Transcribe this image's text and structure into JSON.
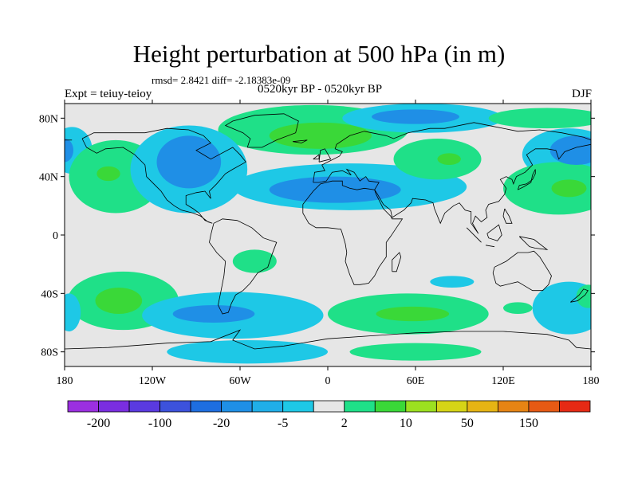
{
  "chart_data": {
    "type": "heatmap",
    "title": "Height perturbation at 500 hPa (in m)",
    "stats_line": "rmsd= 2.8421 diff= -2.18383e-09",
    "period": "0520kyr BP - 0520kyr BP",
    "experiment": "Expt = teiuy-teioy",
    "season": "DJF",
    "projection": "cylindrical equidistant",
    "x_range": [
      -180,
      180
    ],
    "y_range": [
      -90,
      90
    ],
    "x_ticks": [
      {
        "value": -180,
        "label": "180"
      },
      {
        "value": -120,
        "label": "120W"
      },
      {
        "value": -60,
        "label": "60W"
      },
      {
        "value": 0,
        "label": "0"
      },
      {
        "value": 60,
        "label": "60E"
      },
      {
        "value": 120,
        "label": "120E"
      },
      {
        "value": 180,
        "label": "180"
      }
    ],
    "y_ticks": [
      {
        "value": 80,
        "label": "80N"
      },
      {
        "value": 40,
        "label": "40N"
      },
      {
        "value": 0,
        "label": "0"
      },
      {
        "value": -40,
        "label": "40S"
      },
      {
        "value": -80,
        "label": "80S"
      }
    ],
    "colorbar": {
      "colors": [
        "#9b2fe0",
        "#7a2ee0",
        "#5a3ae0",
        "#3c52dc",
        "#1e6ee0",
        "#1f8fe6",
        "#20aee8",
        "#1ec8e6",
        "#e6e6e6",
        "#1fe088",
        "#3ad838",
        "#9ce020",
        "#d6d416",
        "#e6b414",
        "#e68414",
        "#e65a14",
        "#e62a14"
      ],
      "labels": [
        {
          "index": 1,
          "label": "-200"
        },
        {
          "index": 3,
          "label": "-100"
        },
        {
          "index": 5,
          "label": "-20"
        },
        {
          "index": 7,
          "label": "-5"
        },
        {
          "index": 9,
          "label": "2"
        },
        {
          "index": 11,
          "label": "10"
        },
        {
          "index": 13,
          "label": "50"
        },
        {
          "index": 15,
          "label": "150"
        }
      ]
    },
    "anomalies": [
      {
        "lon": -10,
        "lat": 72,
        "rx": 65,
        "ry": 17,
        "level": 1
      },
      {
        "lon": -5,
        "lat": 68,
        "rx": 35,
        "ry": 9,
        "level": 2
      },
      {
        "lon": 65,
        "lat": 80,
        "rx": 55,
        "ry": 10,
        "level": -1
      },
      {
        "lon": 60,
        "lat": 81,
        "rx": 30,
        "ry": 5,
        "level": -2
      },
      {
        "lon": 150,
        "lat": 80,
        "rx": 40,
        "ry": 7,
        "level": 1
      },
      {
        "lon": -175,
        "lat": 58,
        "rx": 14,
        "ry": 16,
        "level": -1
      },
      {
        "lon": -180,
        "lat": 58,
        "rx": 6,
        "ry": 8,
        "level": -2
      },
      {
        "lon": -145,
        "lat": 40,
        "rx": 32,
        "ry": 25,
        "level": 1
      },
      {
        "lon": -150,
        "lat": 42,
        "rx": 8,
        "ry": 5,
        "level": 2
      },
      {
        "lon": -95,
        "lat": 45,
        "rx": 40,
        "ry": 30,
        "level": -1
      },
      {
        "lon": -95,
        "lat": 50,
        "rx": 22,
        "ry": 18,
        "level": -2
      },
      {
        "lon": 15,
        "lat": 33,
        "rx": 80,
        "ry": 16,
        "level": -1
      },
      {
        "lon": 5,
        "lat": 31,
        "rx": 45,
        "ry": 9,
        "level": -2
      },
      {
        "lon": 75,
        "lat": 52,
        "rx": 30,
        "ry": 14,
        "level": 1
      },
      {
        "lon": 83,
        "lat": 52,
        "rx": 8,
        "ry": 4,
        "level": 2
      },
      {
        "lon": 165,
        "lat": 55,
        "rx": 32,
        "ry": 18,
        "level": -1
      },
      {
        "lon": 170,
        "lat": 58,
        "rx": 18,
        "ry": 10,
        "level": -2
      },
      {
        "lon": 158,
        "lat": 32,
        "rx": 38,
        "ry": 18,
        "level": 1
      },
      {
        "lon": 165,
        "lat": 32,
        "rx": 12,
        "ry": 6,
        "level": 2
      },
      {
        "lon": -50,
        "lat": -18,
        "rx": 15,
        "ry": 8,
        "level": 1
      },
      {
        "lon": -140,
        "lat": -45,
        "rx": 38,
        "ry": 20,
        "level": 1
      },
      {
        "lon": -143,
        "lat": -45,
        "rx": 16,
        "ry": 9,
        "level": 2
      },
      {
        "lon": -177,
        "lat": -53,
        "rx": 8,
        "ry": 13,
        "level": -1
      },
      {
        "lon": -65,
        "lat": -55,
        "rx": 62,
        "ry": 16,
        "level": -1
      },
      {
        "lon": -78,
        "lat": -54,
        "rx": 28,
        "ry": 6,
        "level": -2
      },
      {
        "lon": -55,
        "lat": -80,
        "rx": 55,
        "ry": 8,
        "level": -1
      },
      {
        "lon": 55,
        "lat": -54,
        "rx": 55,
        "ry": 14,
        "level": 1
      },
      {
        "lon": 58,
        "lat": -54,
        "rx": 25,
        "ry": 5,
        "level": 2
      },
      {
        "lon": 85,
        "lat": -32,
        "rx": 15,
        "ry": 4,
        "level": -1
      },
      {
        "lon": 165,
        "lat": -50,
        "rx": 25,
        "ry": 18,
        "level": -1
      },
      {
        "lon": 178,
        "lat": -42,
        "rx": 8,
        "ry": 8,
        "level": 1
      },
      {
        "lon": 130,
        "lat": -50,
        "rx": 10,
        "ry": 4,
        "level": 1
      },
      {
        "lon": 60,
        "lat": -80,
        "rx": 45,
        "ry": 6,
        "level": 1
      }
    ]
  },
  "palette": {
    "neg1": "#1ec8e6",
    "neg2": "#1f8fe6",
    "pos1": "#1fe088",
    "pos2": "#3ad838",
    "background": "#e6e6e6"
  }
}
